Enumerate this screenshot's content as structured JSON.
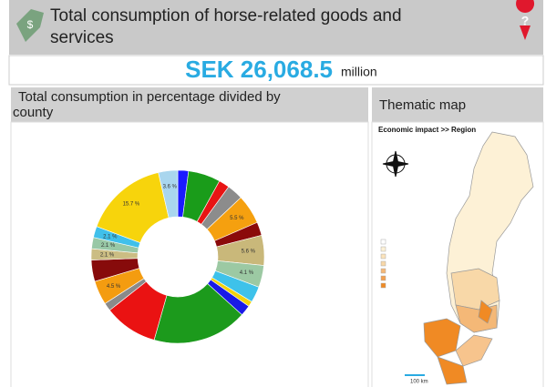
{
  "header": {
    "title": "Total consumption of horse-related goods and services"
  },
  "summary": {
    "value": "SEK 26,068.5",
    "unit": "million"
  },
  "chart_data": {
    "type": "pie",
    "title": "Total consumption in percentage divided by county",
    "values": [
      2,
      6,
      2,
      3,
      5.5,
      2.5,
      5.6,
      4.1,
      3,
      1,
      2,
      17.7,
      10,
      1.5,
      4.5,
      4,
      2.1,
      2.1,
      2.1,
      15.7,
      3.6
    ],
    "colors": [
      "#1a1aff",
      "#1a9c1a",
      "#e81414",
      "#8c8c8c",
      "#f5a00f",
      "#8b0a0a",
      "#c9b87a",
      "#9cc9a3",
      "#3ec2ea",
      "#f2d20c",
      "#1a1ae6",
      "#1c9a1c",
      "#ea1212",
      "#8a8a8a",
      "#f49c10",
      "#870b0b",
      "#cbbd83",
      "#98c8a6",
      "#40c0ea",
      "#f7d40c",
      "#a9d6ee"
    ],
    "value_labels": [
      null,
      null,
      null,
      null,
      "5.5 %",
      null,
      "5.6 %",
      "4.1 %",
      null,
      null,
      null,
      null,
      null,
      null,
      "4.5 %",
      null,
      "2.1 %",
      "2.1 %",
      "2.1 %",
      "15.7 %",
      "3.6 %"
    ]
  },
  "map": {
    "title": "Thematic map",
    "heading": "Economic impact >> Region",
    "scale": "100 km"
  }
}
